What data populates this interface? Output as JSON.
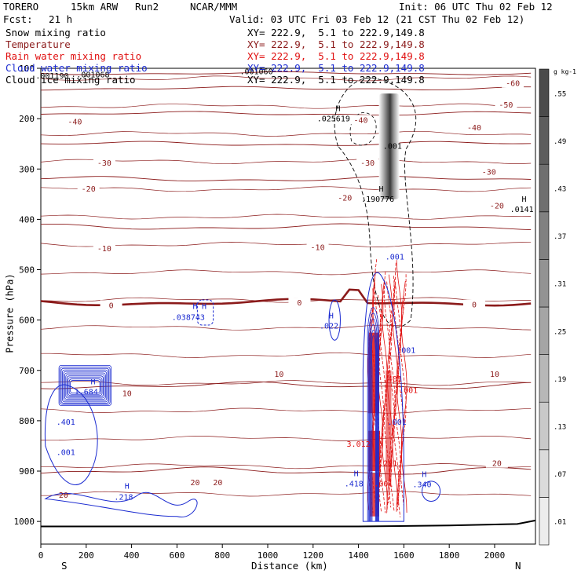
{
  "header": {
    "model": "TORERO",
    "resolution": "15km ARW",
    "run": "Run2",
    "org": "NCAR/MMM",
    "init": "Init: 06 UTC Thu 02 Feb 12",
    "fcst_label": "Fcst:",
    "fcst_value": "21 h",
    "valid": "Valid: 03 UTC Fri 03 Feb 12 (21 CST Thu 02 Feb 12)"
  },
  "legend": [
    {
      "name": "Snow mixing ratio",
      "xy": "XY= 222.9,  5.1 to 222.9,149.8",
      "color": "#000000"
    },
    {
      "name": "Temperature",
      "xy": "XY= 222.9,  5.1 to 222.9,149.8",
      "color": "#8b1a1a"
    },
    {
      "name": "Rain water mixing ratio",
      "xy": "XY= 222.9,  5.1 to 222.9,149.8",
      "color": "#e01010"
    },
    {
      "name": "Cloud water mixing ratio",
      "xy": "XY= 222.9,  5.1 to 222.9,149.8",
      "color": "#1a2ad0"
    },
    {
      "name": "Cloud ice mixing ratio",
      "xy": "XY= 222.9,  5.1 to 222.9,149.8",
      "color": "#000000"
    }
  ],
  "chart_data": {
    "type": "cross-section",
    "xlabel": "Distance (km)",
    "ylabel": "Pressure (hPa)",
    "x_ticks": [
      0,
      200,
      400,
      600,
      800,
      1000,
      1200,
      1400,
      1600,
      1800,
      2000
    ],
    "y_ticks": [
      100,
      200,
      300,
      400,
      500,
      600,
      700,
      800,
      900,
      1000
    ],
    "xlim": [
      0,
      2180
    ],
    "ylim": [
      1045,
      100
    ],
    "end_labels": {
      "left": "S",
      "right": "N"
    },
    "temperature_contours": [
      {
        "t": -60,
        "p": 110
      },
      {
        "t": -50,
        "p": 140
      },
      {
        "t": -40,
        "p": 190
      },
      {
        "t": -30,
        "p": 250
      },
      {
        "t": -20,
        "p": 320
      },
      {
        "t": -10,
        "p": 415
      },
      {
        "t": 0,
        "p": 565
      },
      {
        "t": 10,
        "p": 730
      },
      {
        "t": 20,
        "p": 900
      }
    ],
    "temperature_labels": [
      {
        "text": "-60",
        "x": 2080,
        "p": 132
      },
      {
        "text": "-50",
        "x": 2050,
        "p": 175
      },
      {
        "text": "-40",
        "x": 150,
        "p": 208
      },
      {
        "text": "-40",
        "x": 1410,
        "p": 205
      },
      {
        "text": "-40",
        "x": 1910,
        "p": 220
      },
      {
        "text": "-30",
        "x": 280,
        "p": 290
      },
      {
        "text": "-30",
        "x": 1440,
        "p": 290
      },
      {
        "text": "-30",
        "x": 1975,
        "p": 308
      },
      {
        "text": "-20",
        "x": 210,
        "p": 342
      },
      {
        "text": "-20",
        "x": 1340,
        "p": 360
      },
      {
        "text": "-20",
        "x": 2010,
        "p": 375
      },
      {
        "text": "-10",
        "x": 280,
        "p": 460
      },
      {
        "text": "-10",
        "x": 1220,
        "p": 458
      },
      {
        "text": "0",
        "x": 310,
        "p": 573
      },
      {
        "text": "0",
        "x": 1140,
        "p": 568
      },
      {
        "text": "0",
        "x": 1910,
        "p": 572
      },
      {
        "text": "10",
        "x": 380,
        "p": 748
      },
      {
        "text": "10",
        "x": 1050,
        "p": 710
      },
      {
        "text": "10",
        "x": 2000,
        "p": 710
      },
      {
        "text": "20",
        "x": 680,
        "p": 925
      },
      {
        "text": "20",
        "x": 780,
        "p": 925
      },
      {
        "text": "20",
        "x": 2010,
        "p": 887
      }
    ],
    "snow_shading": {
      "x": [
        1490,
        1580
      ],
      "p": [
        150,
        360
      ],
      "scale": [
        0.01,
        0.07,
        0.13,
        0.19,
        0.25,
        0.31,
        0.37,
        0.43,
        0.49,
        0.55
      ],
      "units": "g kg-1"
    },
    "annotations": [
      {
        "text": ".001190",
        "x": 50,
        "p": 120,
        "color": "#000000"
      },
      {
        "text": ".001068",
        "x": 230,
        "p": 118,
        "color": "#000000"
      },
      {
        "text": ".001060",
        "x": 950,
        "p": 112,
        "color": "#000000"
      },
      {
        "text": "H",
        "x": 1310,
        "p": 185,
        "color": "#000000"
      },
      {
        "text": ".025619",
        "x": 1290,
        "p": 205,
        "color": "#000000"
      },
      {
        "text": ".001",
        "x": 1550,
        "p": 260,
        "color": "#000000"
      },
      {
        "text": "H",
        "x": 1500,
        "p": 345,
        "color": "#000000"
      },
      {
        "text": ".190776",
        "x": 1485,
        "p": 365,
        "color": "#000000"
      },
      {
        "text": "H",
        "x": 2130,
        "p": 365,
        "color": "#000000"
      },
      {
        "text": ".0141",
        "x": 2120,
        "p": 385,
        "color": "#000000"
      },
      {
        "text": ".001",
        "x": 1560,
        "p": 480,
        "color": "#1a2ad0"
      },
      {
        "text": "H",
        "x": 680,
        "p": 578,
        "color": "#1a2ad0"
      },
      {
        "text": "H",
        "x": 720,
        "p": 578,
        "color": "#1a2ad0"
      },
      {
        "text": ".038743",
        "x": 650,
        "p": 600,
        "color": "#1a2ad0"
      },
      {
        "text": "H",
        "x": 1280,
        "p": 597,
        "color": "#1a2ad0"
      },
      {
        "text": ".022",
        "x": 1270,
        "p": 617,
        "color": "#1a2ad0"
      },
      {
        "text": ".001",
        "x": 1610,
        "p": 665,
        "color": "#1a2ad0"
      },
      {
        "text": ".401",
        "x": 1550,
        "p": 722,
        "color": "#e01010"
      },
      {
        "text": ".001",
        "x": 1620,
        "p": 745,
        "color": "#e01010"
      },
      {
        "text": "H",
        "x": 230,
        "p": 728,
        "color": "#1a2ad0"
      },
      {
        "text": "1.684",
        "x": 200,
        "p": 748,
        "color": "#1a2ad0"
      },
      {
        "text": ".401",
        "x": 110,
        "p": 808,
        "color": "#1a2ad0"
      },
      {
        "text": ".001",
        "x": 1570,
        "p": 808,
        "color": "#1a2ad0"
      },
      {
        "text": ".001",
        "x": 110,
        "p": 868,
        "color": "#1a2ad0"
      },
      {
        "text": "3.012",
        "x": 1400,
        "p": 852,
        "color": "#e01010"
      },
      {
        "text": ".201",
        "x": 1530,
        "p": 890,
        "color": "#e01010"
      },
      {
        "text": "H",
        "x": 1390,
        "p": 910,
        "color": "#1a2ad0"
      },
      {
        "text": ".418",
        "x": 1380,
        "p": 930,
        "color": "#1a2ad0"
      },
      {
        "text": ".001",
        "x": 1510,
        "p": 930,
        "color": "#e01010"
      },
      {
        "text": "H",
        "x": 1690,
        "p": 912,
        "color": "#1a2ad0"
      },
      {
        "text": ".340",
        "x": 1680,
        "p": 932,
        "color": "#1a2ad0"
      },
      {
        "text": "H",
        "x": 380,
        "p": 935,
        "color": "#1a2ad0"
      },
      {
        "text": ".218",
        "x": 365,
        "p": 957,
        "color": "#1a2ad0"
      },
      {
        "text": "20",
        "x": 100,
        "p": 953,
        "color": "#8b1a1a"
      }
    ]
  }
}
